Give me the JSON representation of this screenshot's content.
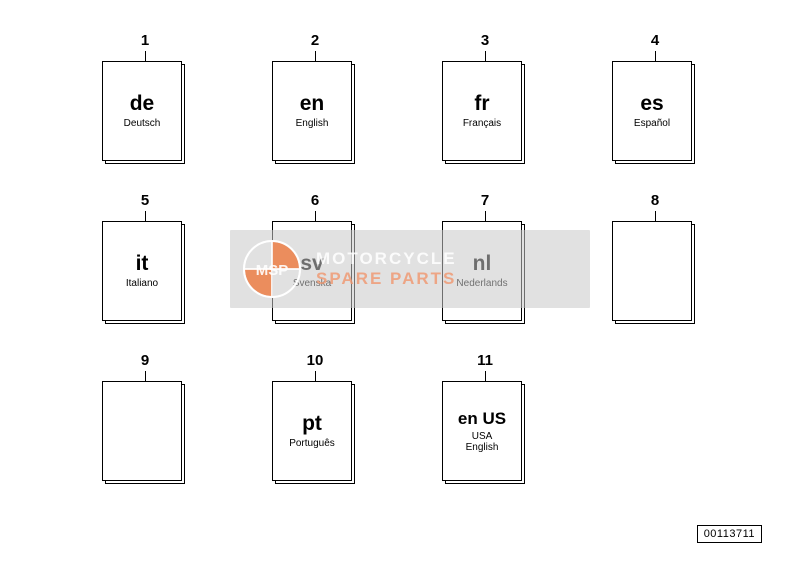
{
  "items": [
    {
      "num": "1",
      "code": "de",
      "lang": "Deutsch",
      "blank": false
    },
    {
      "num": "2",
      "code": "en",
      "lang": "English",
      "blank": false
    },
    {
      "num": "3",
      "code": "fr",
      "lang": "Français",
      "blank": false
    },
    {
      "num": "4",
      "code": "es",
      "lang": "Español",
      "blank": false
    },
    {
      "num": "5",
      "code": "it",
      "lang": "Italiano",
      "blank": false
    },
    {
      "num": "6",
      "code": "sv",
      "lang": "Svenska",
      "blank": false
    },
    {
      "num": "7",
      "code": "nl",
      "lang": "Nederlands",
      "blank": false
    },
    {
      "num": "8",
      "code": "",
      "lang": "",
      "blank": true
    },
    {
      "num": "9",
      "code": "",
      "lang": "",
      "blank": true
    },
    {
      "num": "10",
      "code": "pt",
      "lang": "Português",
      "blank": false
    },
    {
      "num": "11",
      "code": "en US",
      "lang": "USA\nEnglish",
      "blank": false
    }
  ],
  "style": {
    "code_fontsize": 21,
    "code_fontsize_small": 17,
    "lang_fontsize": 10,
    "num_fontsize": 15,
    "colors": {
      "text": "#000000",
      "background": "#ffffff",
      "border": "#000000"
    }
  },
  "watermark": {
    "top": "MOTORCYCLE",
    "bottom": "SPARE PARTS",
    "top_color": "rgba(255,255,255,0.85)",
    "bottom_color": "rgba(240,150,110,0.8)",
    "fontsize": 17,
    "logo_color_outer": "rgba(255,255,255,0.85)",
    "logo_color_inner": "rgba(238,120,60,0.85)",
    "logo_text": "MSP"
  },
  "footer": {
    "code": "00113711"
  }
}
